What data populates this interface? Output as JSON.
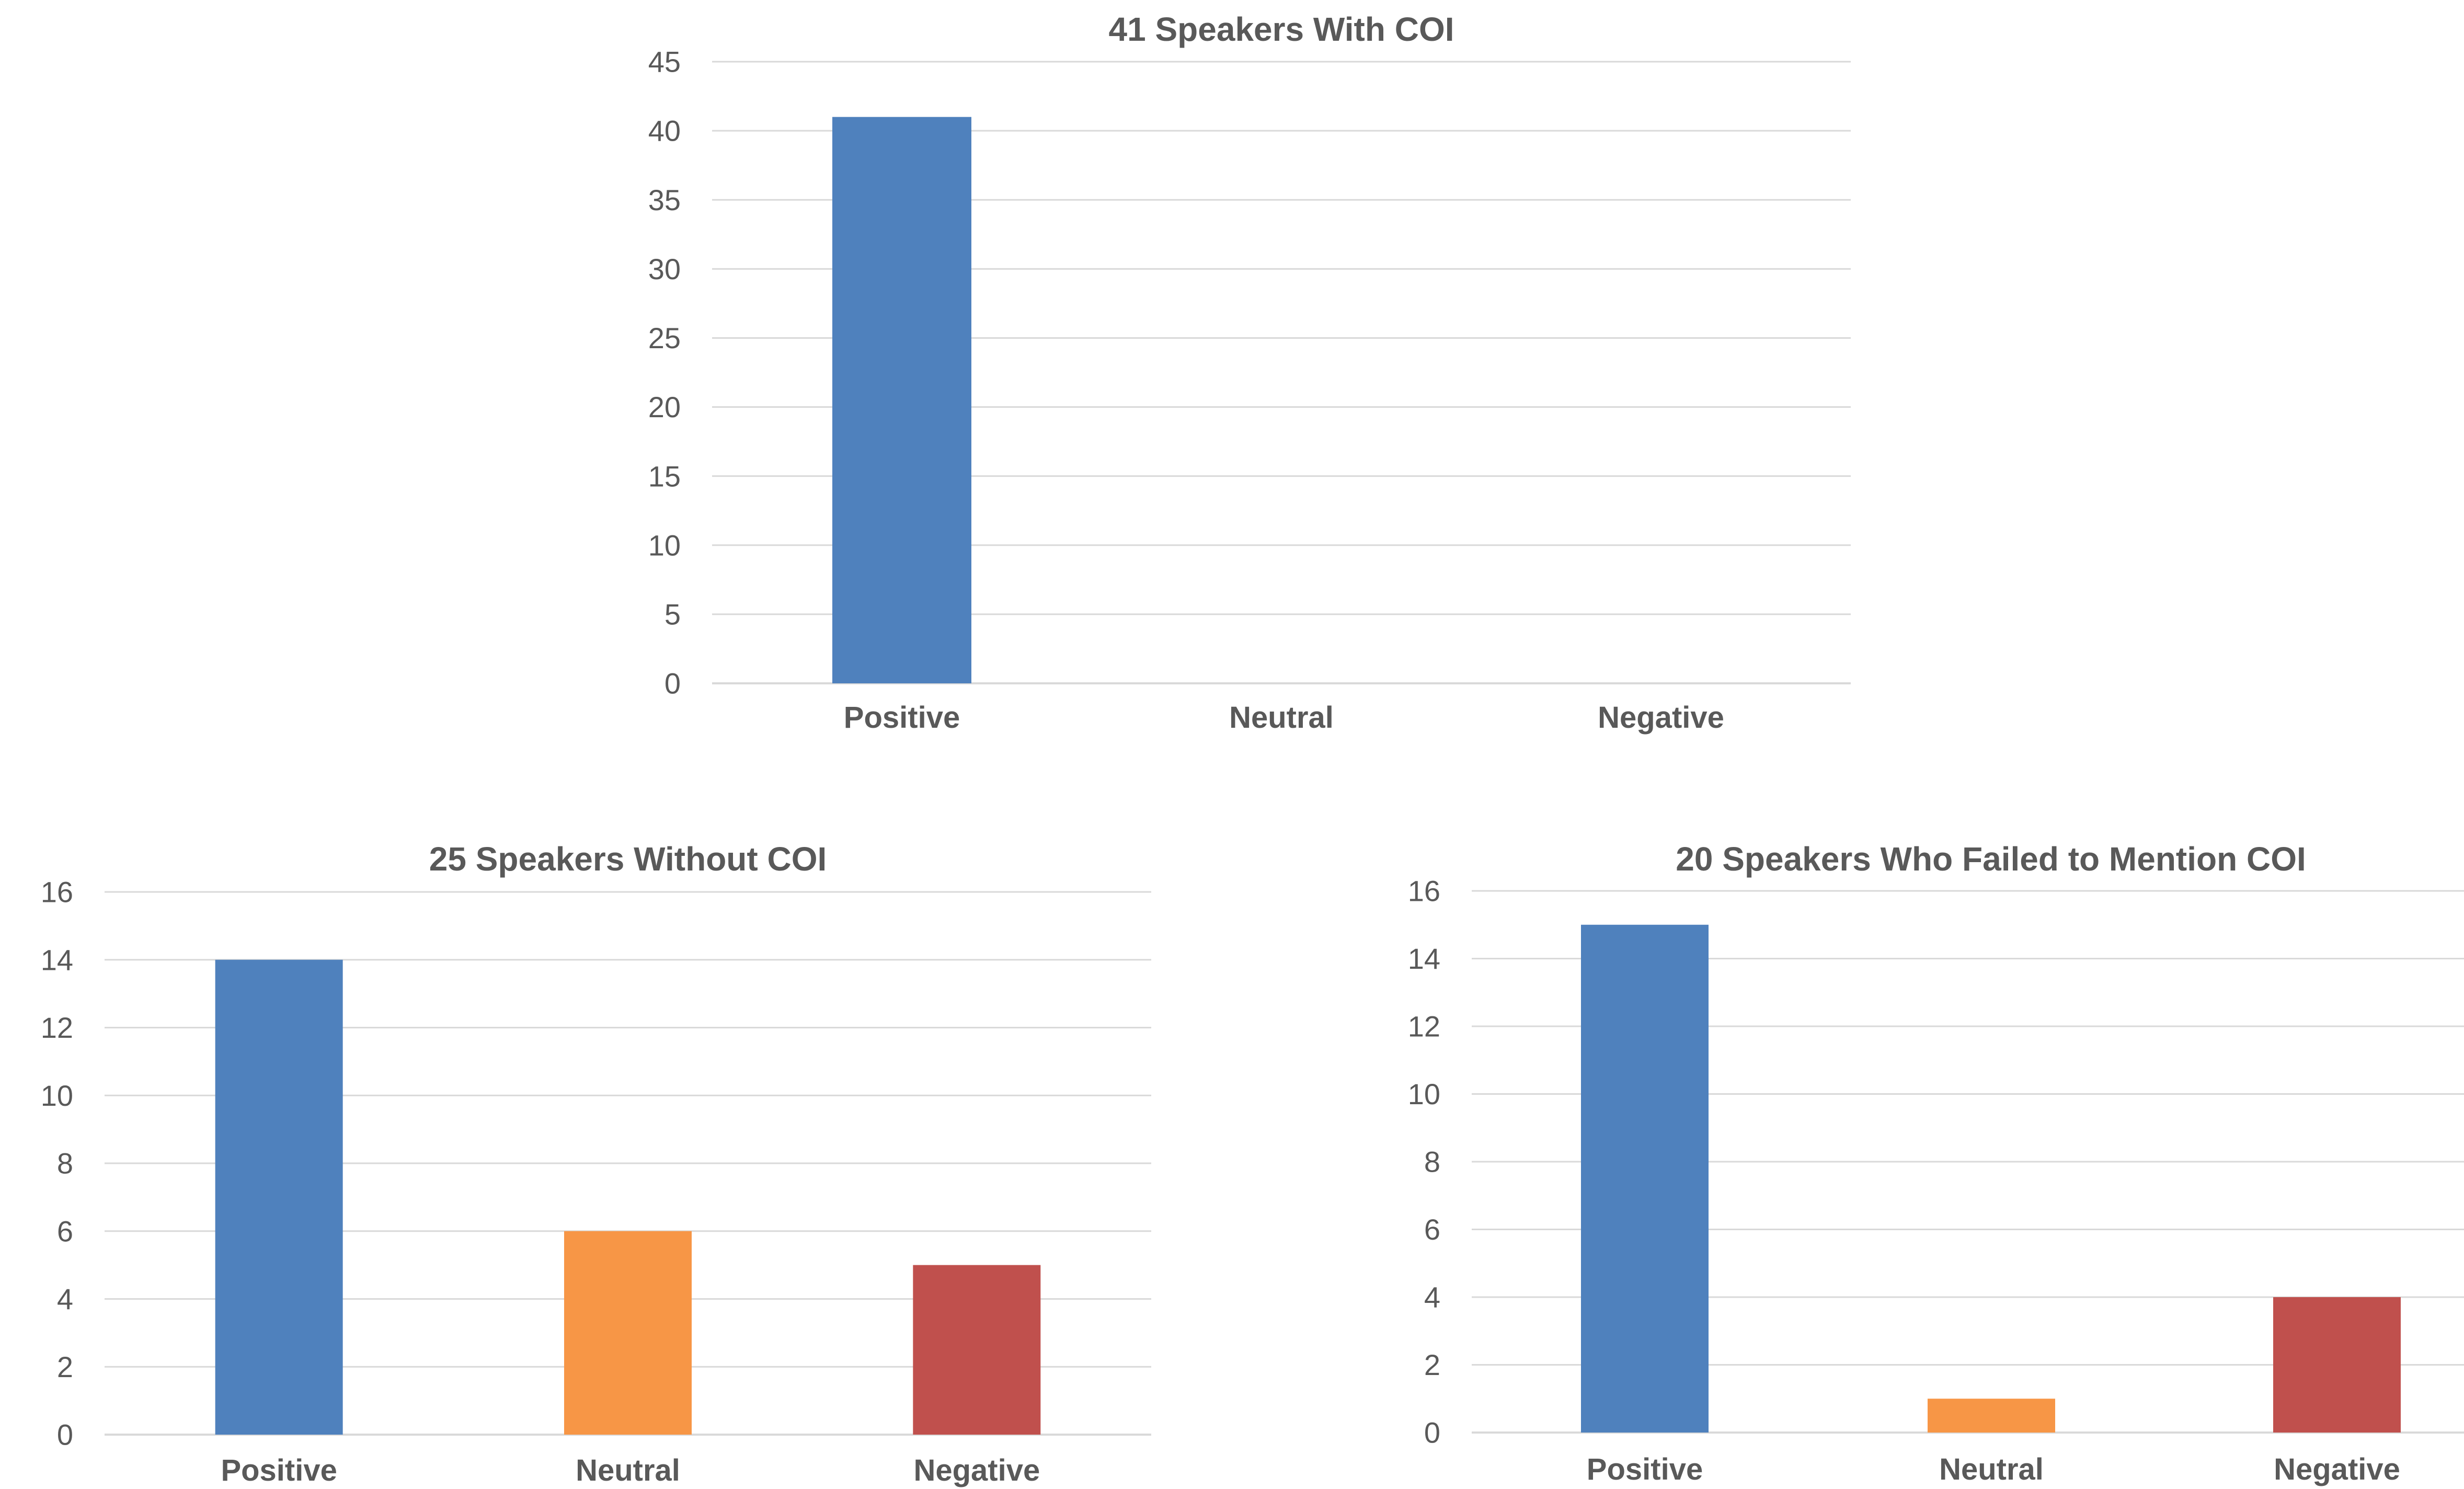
{
  "chart_data": [
    {
      "type": "bar",
      "title": "41 Speakers With COI",
      "categories": [
        "Positive",
        "Neutral",
        "Negative"
      ],
      "values": [
        41,
        0,
        0
      ],
      "ylim": [
        0,
        45
      ],
      "yticks": [
        0,
        5,
        10,
        15,
        20,
        25,
        30,
        35,
        40,
        45
      ],
      "grid": true,
      "colors": [
        "#4f81bd",
        "#f79646",
        "#c0504d"
      ],
      "xlabel": "",
      "ylabel": ""
    },
    {
      "type": "bar",
      "title": "25 Speakers Without COI",
      "categories": [
        "Positive",
        "Neutral",
        "Negative"
      ],
      "values": [
        14,
        6,
        5
      ],
      "ylim": [
        0,
        16
      ],
      "yticks": [
        0,
        2,
        4,
        6,
        8,
        10,
        12,
        14,
        16
      ],
      "grid": true,
      "colors": [
        "#4f81bd",
        "#f79646",
        "#c0504d"
      ],
      "xlabel": "",
      "ylabel": ""
    },
    {
      "type": "bar",
      "title": "20 Speakers Who Failed to Mention COI",
      "categories": [
        "Positive",
        "Neutral",
        "Negative"
      ],
      "values": [
        15,
        1,
        4
      ],
      "ylim": [
        0,
        16
      ],
      "yticks": [
        0,
        2,
        4,
        6,
        8,
        10,
        12,
        14,
        16
      ],
      "grid": true,
      "colors": [
        "#4f81bd",
        "#f79646",
        "#c0504d"
      ],
      "xlabel": "",
      "ylabel": ""
    }
  ]
}
